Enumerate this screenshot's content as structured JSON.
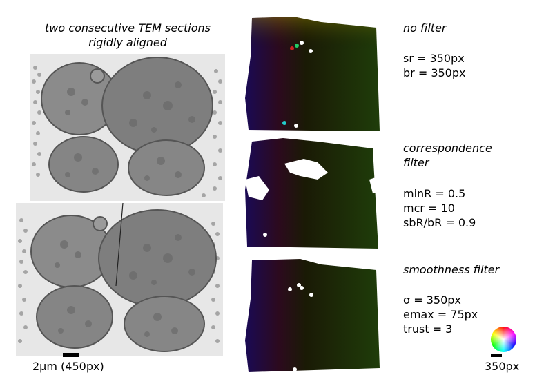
{
  "left_panel": {
    "title_line1": "two consecutive TEM sections",
    "title_line2": "rigidly aligned",
    "scale_label": "2µm (450px)"
  },
  "panels": [
    {
      "title_lines": [
        "no filter"
      ],
      "params": [
        "sr = 350px",
        "br = 350px"
      ]
    },
    {
      "title_lines": [
        "correspondence",
        "filter"
      ],
      "params": [
        "minR = 0.5",
        "mcr = 10",
        "sbR/bR = 0.9"
      ]
    },
    {
      "title_lines": [
        "smoothness filter"
      ],
      "params": [
        "σ = 350px",
        "emax = 75px",
        "trust = 3"
      ]
    }
  ],
  "color_wheel": {
    "scale_label": "350px",
    "colors": [
      "#ff0000",
      "#ff00ff",
      "#0000ff",
      "#00ffff",
      "#00ff00",
      "#ffff00"
    ]
  }
}
